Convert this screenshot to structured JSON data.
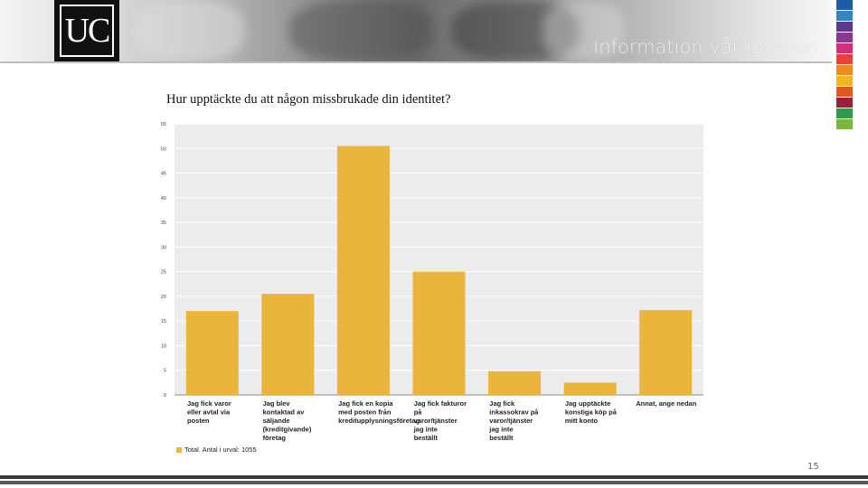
{
  "header": {
    "logo_text": "UC",
    "tagline": "Information vår passion",
    "accent_colors": [
      "#1a5ea8",
      "#2f86c8",
      "#5b3a8e",
      "#8a3a8e",
      "#d4307a",
      "#e8403a",
      "#f08a1e",
      "#f5b51e",
      "#e05a1e",
      "#9c1e3a",
      "#2e9a4a",
      "#7ab83a"
    ]
  },
  "slide": {
    "question": "Hur upptäckte du att någon missbrukade din identitet?",
    "page_number": "15"
  },
  "chart_data": {
    "type": "bar",
    "categories": [
      [
        "Jag fick varor",
        "eller avtal via",
        "posten"
      ],
      [
        "Jag blev",
        "kontaktad av",
        "säljande",
        "(kreditgivande)",
        "företag"
      ],
      [
        "Jag fick en kopia",
        "med posten från",
        "kreditupplysningsföretag"
      ],
      [
        "Jag fick fakturor",
        "på",
        "varor/tjänster",
        "jag inte",
        "beställt"
      ],
      [
        "Jag fick",
        "inkassokrav på",
        "varor/tjänster",
        "jag inte",
        "beställt"
      ],
      [
        "Jag upptäckte",
        "konstiga köp på",
        "mitt konto"
      ],
      [
        "Annat, ange nedan"
      ]
    ],
    "series": [
      {
        "name": "Total. Antal i urval: 1055",
        "values": [
          17,
          20.5,
          50.5,
          25,
          4.8,
          2.5,
          17.2
        ]
      }
    ],
    "yticks": [
      "0",
      "5",
      "10",
      "15",
      "20",
      "25",
      "30",
      "35",
      "40",
      "45",
      "50",
      "55"
    ],
    "ylim": [
      0,
      55
    ],
    "grid": true,
    "legend_position": "bottom-left",
    "bar_color": "#e9b53a",
    "plot_bg": "#ececec",
    "grid_color": "#ffffff"
  }
}
